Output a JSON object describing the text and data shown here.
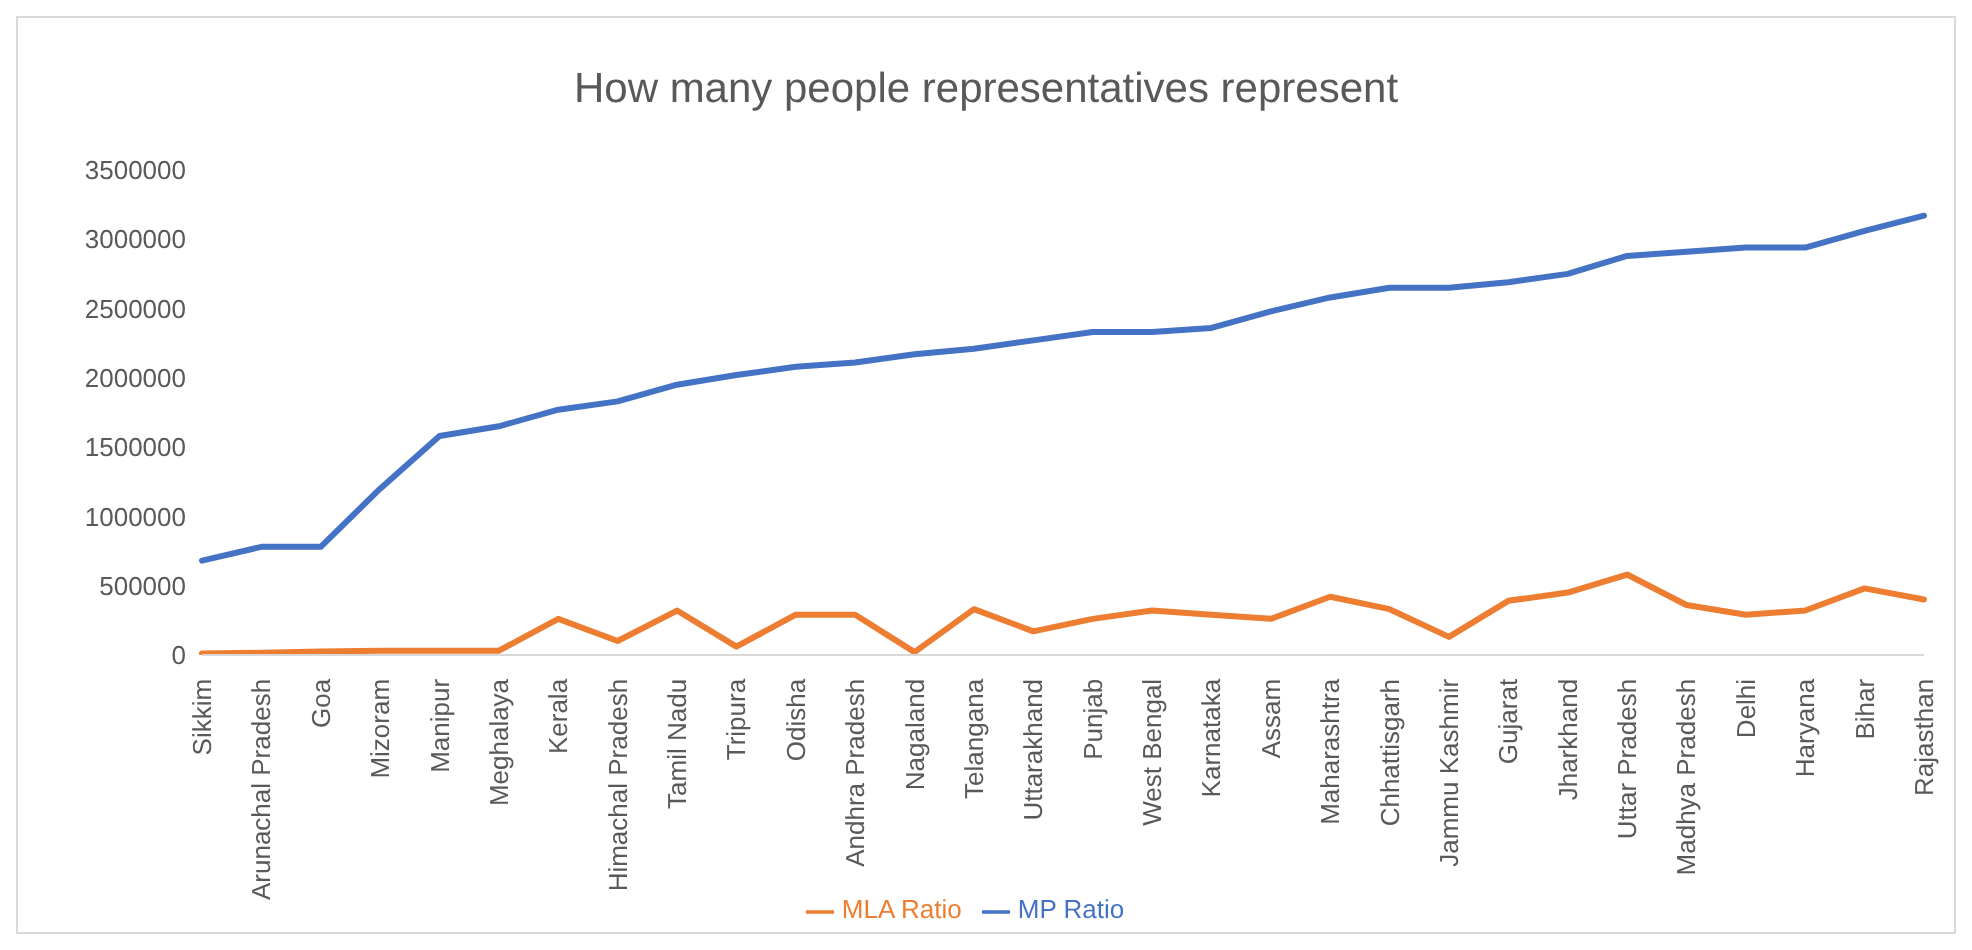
{
  "chart_data": {
    "type": "line",
    "title": "How many people representatives represent",
    "categories": [
      "Sikkim",
      "Arunachal Pradesh",
      "Goa",
      "Mizoram",
      "Manipur",
      "Meghalaya",
      "Kerala",
      "Himachal Pradesh",
      "Tamil Nadu",
      "Tripura",
      "Odisha",
      "Andhra Pradesh",
      "Nagaland",
      "Telangana",
      "Uttarakhand",
      "Punjab",
      "West Bengal",
      "Karnataka",
      "Assam",
      "Maharashtra",
      "Chhattisgarh",
      "Jammu Kashmir",
      "Gujarat",
      "Jharkhand",
      "Uttar Pradesh",
      "Madhya Pradesh",
      "Delhi",
      "Haryana",
      "Bihar",
      "Rajasthan"
    ],
    "series": [
      {
        "name": "MP Ratio",
        "color": "#4472c4",
        "values": [
          680000,
          780000,
          780000,
          1200000,
          1580000,
          1650000,
          1770000,
          1830000,
          1950000,
          2020000,
          2080000,
          2110000,
          2170000,
          2210000,
          2270000,
          2330000,
          2330000,
          2360000,
          2480000,
          2580000,
          2650000,
          2650000,
          2690000,
          2750000,
          2880000,
          2910000,
          2940000,
          2940000,
          3060000,
          3170000
        ]
      },
      {
        "name": "MLA Ratio",
        "color": "#ed7d31",
        "values": [
          10000,
          15000,
          25000,
          30000,
          30000,
          30000,
          260000,
          100000,
          320000,
          60000,
          290000,
          290000,
          20000,
          330000,
          170000,
          260000,
          320000,
          290000,
          260000,
          420000,
          330000,
          130000,
          390000,
          450000,
          580000,
          360000,
          290000,
          320000,
          480000,
          400000
        ]
      }
    ],
    "ylim": [
      0,
      3500000
    ],
    "yticks": [
      0,
      500000,
      1000000,
      1500000,
      2000000,
      2500000,
      3000000,
      3500000
    ],
    "grid": false,
    "legend": "bottom",
    "marker": "none",
    "line_style": "solid"
  }
}
